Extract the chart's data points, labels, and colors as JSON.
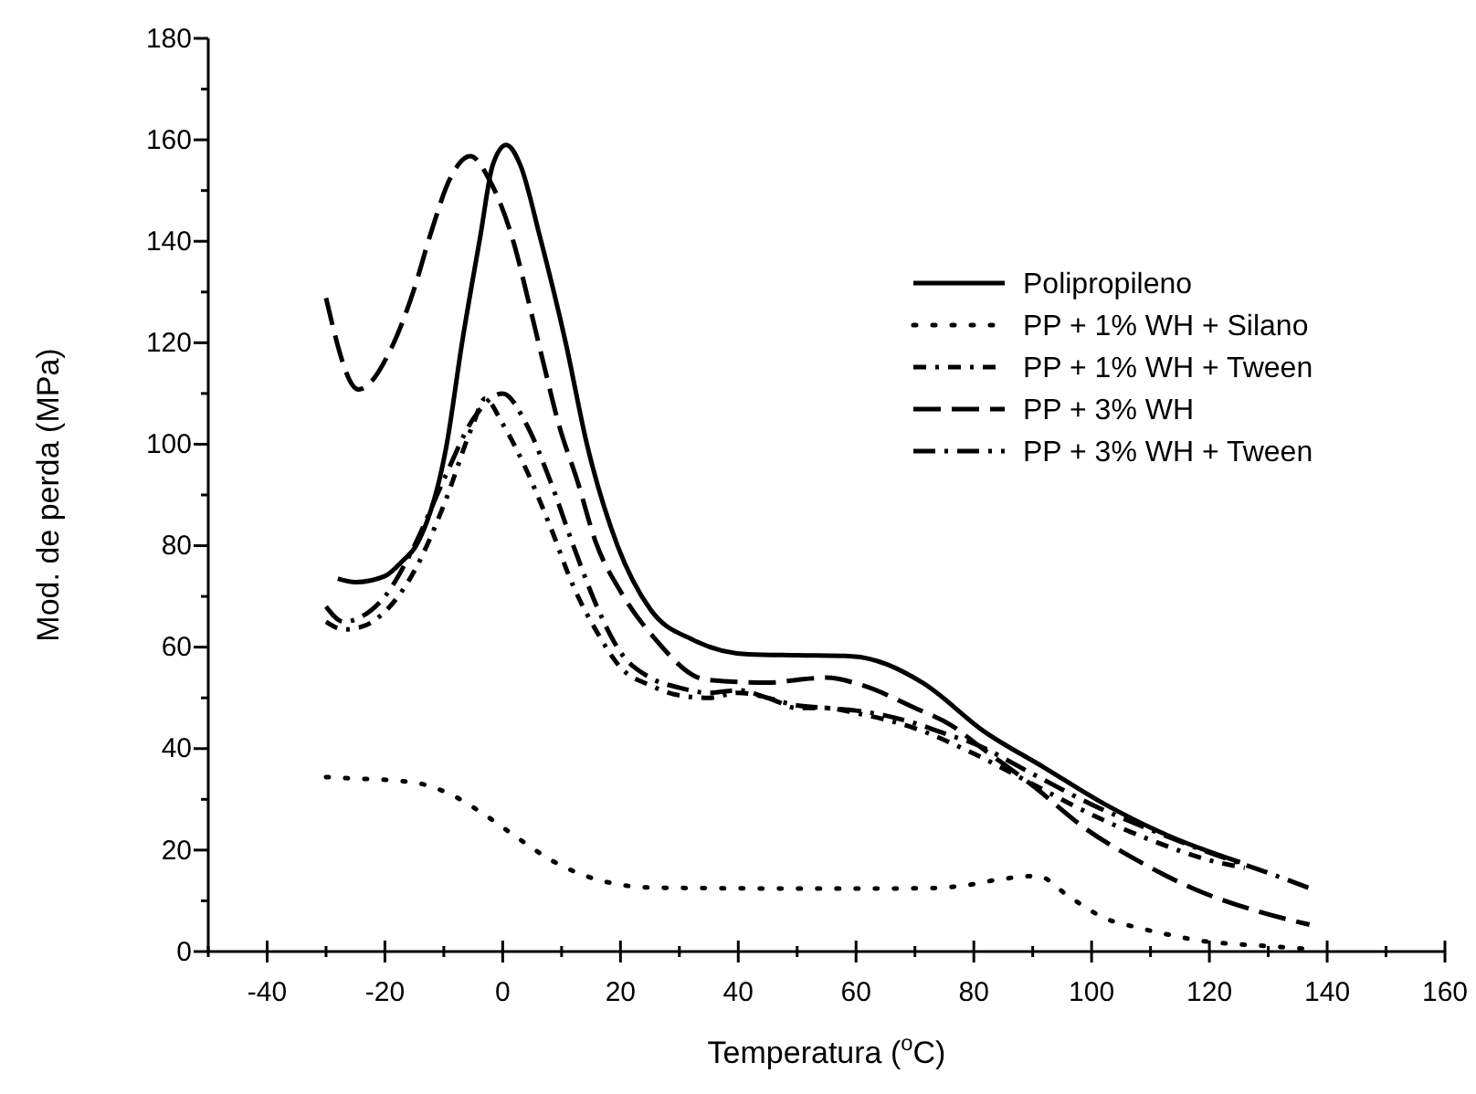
{
  "chart_data": {
    "type": "line",
    "xlabel": "Temperatura ($^{o}$C)",
    "ylabel": "Mod. de perda (MPa)",
    "xlim": [
      -50,
      160
    ],
    "xticks": [
      {
        "value": -50,
        "label": null
      },
      -40,
      {
        "value": -30,
        "label": null
      },
      -20,
      {
        "value": -10,
        "label": null
      },
      0,
      {
        "value": 10,
        "label": null
      },
      20,
      {
        "value": 30,
        "label": null
      },
      40,
      {
        "value": 50,
        "label": null
      },
      60,
      {
        "value": 70,
        "label": null
      },
      80,
      {
        "value": 90,
        "label": null
      },
      100,
      {
        "value": 110,
        "label": null
      },
      120,
      {
        "value": 130,
        "label": null
      },
      140,
      {
        "value": 150,
        "label": null
      },
      160
    ],
    "ylim": [
      0,
      180
    ],
    "yticks": [
      0,
      {
        "value": 10,
        "label": null
      },
      20,
      {
        "value": 30,
        "label": null
      },
      40,
      {
        "value": 50,
        "label": null
      },
      60,
      {
        "value": 70,
        "label": null
      },
      80,
      {
        "value": 90,
        "label": null
      },
      100,
      {
        "value": 110,
        "label": null
      },
      120,
      {
        "value": 130,
        "label": null
      },
      140,
      {
        "value": 150,
        "label": null
      },
      160,
      {
        "value": 170,
        "label": null
      },
      180
    ],
    "legend": "top right",
    "marker": "none",
    "series": [
      {
        "name": "Polipropileno",
        "color": "#000000",
        "line_style": "solid",
        "x": [
          -28,
          -25,
          -20,
          -17,
          -14.7,
          -9.5,
          -6.9,
          -3.8,
          -1.7,
          0.6,
          3,
          6.3,
          10.7,
          14.3,
          19.5,
          25.1,
          32.4,
          41.7,
          50,
          59.3,
          71.3,
          81.6,
          91.9,
          102.3,
          112.7,
          125.2
        ],
        "values": [
          73.5,
          72.8,
          74,
          77,
          80,
          100,
          120,
          141,
          155,
          159,
          155,
          141,
          120,
          100,
          80,
          67.4,
          61.4,
          58.6,
          58.4,
          58.2,
          53,
          43.5,
          36.3,
          29,
          23,
          17.6
        ]
      },
      {
        "name": "PP + 1% WH + Silano",
        "color": "#000000",
        "line_style": "dotted",
        "x": [
          -30,
          -25.2,
          -19.3,
          -13.6,
          -8.2,
          -2.6,
          2.9,
          8.4,
          14.1,
          19.8,
          25.7,
          35,
          48.9,
          60,
          72.7,
          78.9,
          84.8,
          90.8,
          96.2,
          102.2,
          107.9,
          113.6,
          119.3,
          125.3,
          131,
          136.7
        ],
        "values": [
          34.4,
          34.1,
          33.8,
          33,
          30.6,
          26.6,
          22.1,
          17.9,
          14.9,
          13.2,
          12.6,
          12.5,
          12.4,
          12.4,
          12.5,
          13.1,
          14.3,
          14.9,
          10.8,
          6.6,
          4.7,
          3.2,
          2,
          1.4,
          1,
          0.5
        ]
      },
      {
        "name": "PP + 1% WH + Tween",
        "color": "#000000",
        "line_style": "dashed",
        "x": [
          -30,
          -27,
          -24,
          -20,
          -15,
          -10,
          -5,
          -3,
          0,
          4,
          8,
          12,
          16,
          20,
          25,
          30,
          35,
          40,
          45,
          50,
          55,
          60,
          70,
          80,
          90,
          100,
          110,
          120,
          126
        ],
        "values": [
          65,
          63.5,
          64,
          67,
          75,
          88,
          104,
          109,
          104,
          95,
          84,
          72,
          63,
          56,
          52.5,
          50.5,
          50,
          51,
          50,
          48,
          48,
          47,
          44,
          39,
          33,
          27,
          22,
          18,
          16.5
        ]
      },
      {
        "name": "PP + 3% WH",
        "color": "#000000",
        "line_style": "dashed",
        "x": [
          -30,
          -24.5,
          -18.8,
          -15.2,
          -12.1,
          -9,
          -5.5,
          -2.3,
          1.9,
          4.5,
          7,
          9.6,
          12.7,
          15.8,
          20,
          25.6,
          34.5,
          45,
          51,
          55,
          61,
          70,
          76,
          81.6,
          90,
          99,
          107.4,
          117.7,
          128,
          137
        ],
        "values": [
          128.8,
          110.8,
          119.2,
          130,
          142,
          152.2,
          156.8,
          152.2,
          139.6,
          127.6,
          115.6,
          103.6,
          92.7,
          80.7,
          71,
          62,
          53.6,
          53,
          53.7,
          54,
          52.5,
          48,
          44.7,
          39.9,
          32.7,
          24.2,
          18.2,
          12.2,
          8,
          5.3
        ]
      },
      {
        "name": "PP + 3% WH + Tween",
        "color": "#000000",
        "line_style": "dashed",
        "x": [
          -30,
          -27,
          -24,
          -20,
          -15,
          -10,
          -5,
          0,
          4,
          8,
          12,
          16,
          20,
          25,
          30,
          35,
          40,
          45,
          50,
          55,
          60,
          65,
          70,
          75,
          80,
          90,
          100,
          110,
          120,
          130,
          137
        ],
        "values": [
          68,
          65,
          66,
          70,
          80,
          93,
          105,
          110,
          104,
          93,
          80,
          68,
          59,
          54,
          52,
          51,
          51.5,
          50,
          48.5,
          48,
          47.5,
          46.5,
          45,
          43,
          41,
          35,
          29,
          24,
          19.5,
          15.5,
          12.5
        ]
      }
    ]
  }
}
